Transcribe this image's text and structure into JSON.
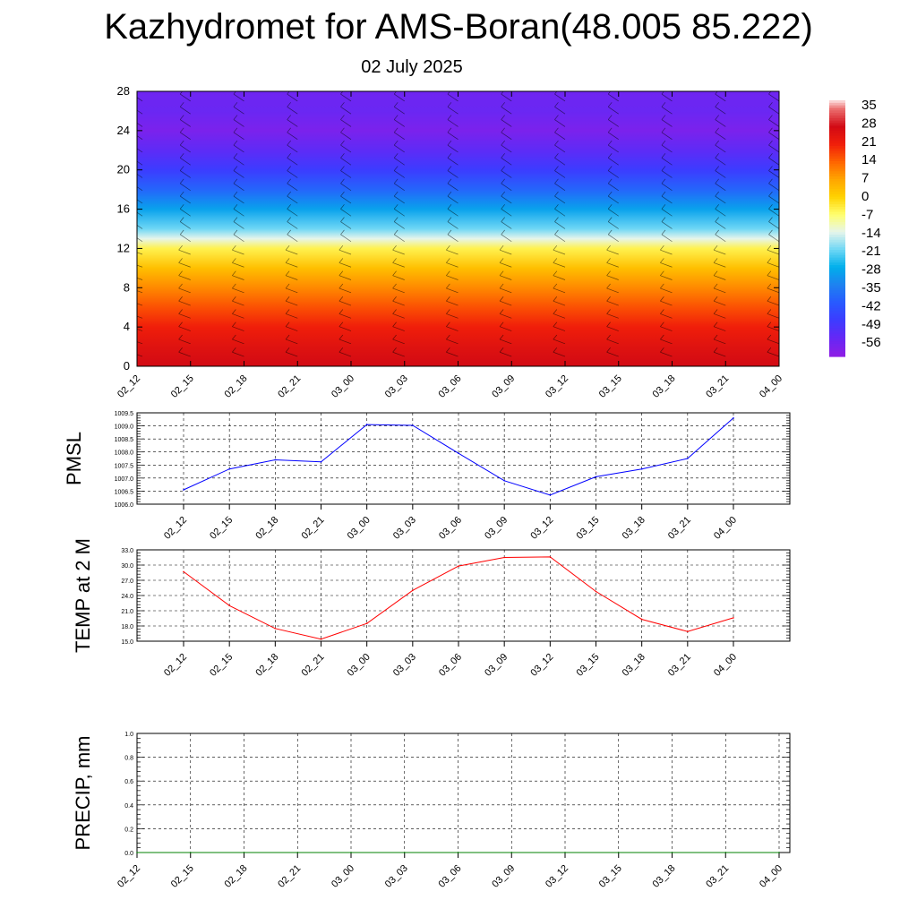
{
  "header": {
    "title": "Kazhydromet for AMS-Boran(48.005 85.222)",
    "date": "02 July 2025"
  },
  "time_labels": [
    "02_12",
    "02_15",
    "02_18",
    "02_21",
    "03_00",
    "03_03",
    "03_06",
    "03_09",
    "03_12",
    "03_15",
    "03_18",
    "03_21",
    "04_00"
  ],
  "chart_data": [
    {
      "type": "heatmap",
      "title": "",
      "xlabel": "",
      "ylabel": "",
      "ylim": [
        0,
        28
      ],
      "yticks": [
        0,
        4,
        8,
        12,
        16,
        20,
        24,
        28
      ],
      "x": [
        "02_12",
        "02_15",
        "02_18",
        "02_21",
        "03_00",
        "03_03",
        "03_06",
        "03_09",
        "03_12",
        "03_15",
        "03_18",
        "03_21",
        "04_00"
      ],
      "colorbar": {
        "labels": [
          "35",
          "28",
          "21",
          "14",
          "7",
          "0",
          "-7",
          "-14",
          "-21",
          "-28",
          "-35",
          "-42",
          "-49",
          "-56"
        ],
        "range": [
          -63,
          38
        ]
      },
      "profile": [
        {
          "y": 0,
          "t": 28
        },
        {
          "y": 2,
          "t": 25
        },
        {
          "y": 4,
          "t": 21
        },
        {
          "y": 6,
          "t": 16
        },
        {
          "y": 8,
          "t": 10
        },
        {
          "y": 10,
          "t": 3
        },
        {
          "y": 12,
          "t": -5
        },
        {
          "y": 13,
          "t": -14
        },
        {
          "y": 14,
          "t": -21
        },
        {
          "y": 16,
          "t": -30
        },
        {
          "y": 18,
          "t": -40
        },
        {
          "y": 20,
          "t": -49
        },
        {
          "y": 22,
          "t": -55
        },
        {
          "y": 24,
          "t": -60
        },
        {
          "y": 26,
          "t": -57
        },
        {
          "y": 28,
          "t": -58
        }
      ],
      "grid": false
    },
    {
      "type": "line",
      "ylabel": "PMSL",
      "ylim": [
        1006.0,
        1009.5
      ],
      "yticks": [
        "1006.0",
        "1006.5",
        "1007.0",
        "1007.5",
        "1008.0",
        "1008.5",
        "1009.0",
        "1009.5"
      ],
      "x": [
        "02_12",
        "02_15",
        "02_18",
        "02_21",
        "03_00",
        "03_03",
        "03_06",
        "03_09",
        "03_12",
        "03_15",
        "03_18",
        "03_21",
        "04_00"
      ],
      "series": [
        {
          "color": "#0000ff",
          "values": [
            1006.55,
            1007.35,
            1007.7,
            1007.62,
            1009.05,
            1009.02,
            1007.95,
            1006.9,
            1006.35,
            1007.05,
            1007.35,
            1007.75,
            1009.3
          ]
        }
      ],
      "grid": true
    },
    {
      "type": "line",
      "ylabel": "TEMP at 2 M",
      "ylim": [
        15.0,
        33.0
      ],
      "yticks": [
        "15.0",
        "18.0",
        "21.0",
        "24.0",
        "27.0",
        "30.0",
        "33.0"
      ],
      "x": [
        "02_12",
        "02_15",
        "02_18",
        "02_21",
        "03_00",
        "03_03",
        "03_06",
        "03_09",
        "03_12",
        "03_15",
        "03_18",
        "03_21",
        "04_00"
      ],
      "series": [
        {
          "color": "#ff0000",
          "values": [
            28.7,
            22.0,
            17.5,
            15.4,
            18.5,
            25.0,
            29.8,
            31.5,
            31.6,
            24.8,
            19.3,
            16.9,
            19.6
          ]
        }
      ],
      "grid": true
    },
    {
      "type": "line",
      "ylabel": "PRECIP, mm",
      "ylim": [
        0.0,
        1.0
      ],
      "yticks": [
        "0.0",
        "0.2",
        "0.4",
        "0.6",
        "0.8",
        "1.0"
      ],
      "x": [
        "02_12",
        "02_15",
        "02_18",
        "02_21",
        "03_00",
        "03_03",
        "03_06",
        "03_09",
        "03_12",
        "03_15",
        "03_18",
        "03_21",
        "04_00"
      ],
      "series": [
        {
          "color": "#008000",
          "values": [
            0,
            0,
            0,
            0,
            0,
            0,
            0,
            0,
            0,
            0,
            0,
            0,
            0
          ]
        }
      ],
      "grid": true
    }
  ]
}
